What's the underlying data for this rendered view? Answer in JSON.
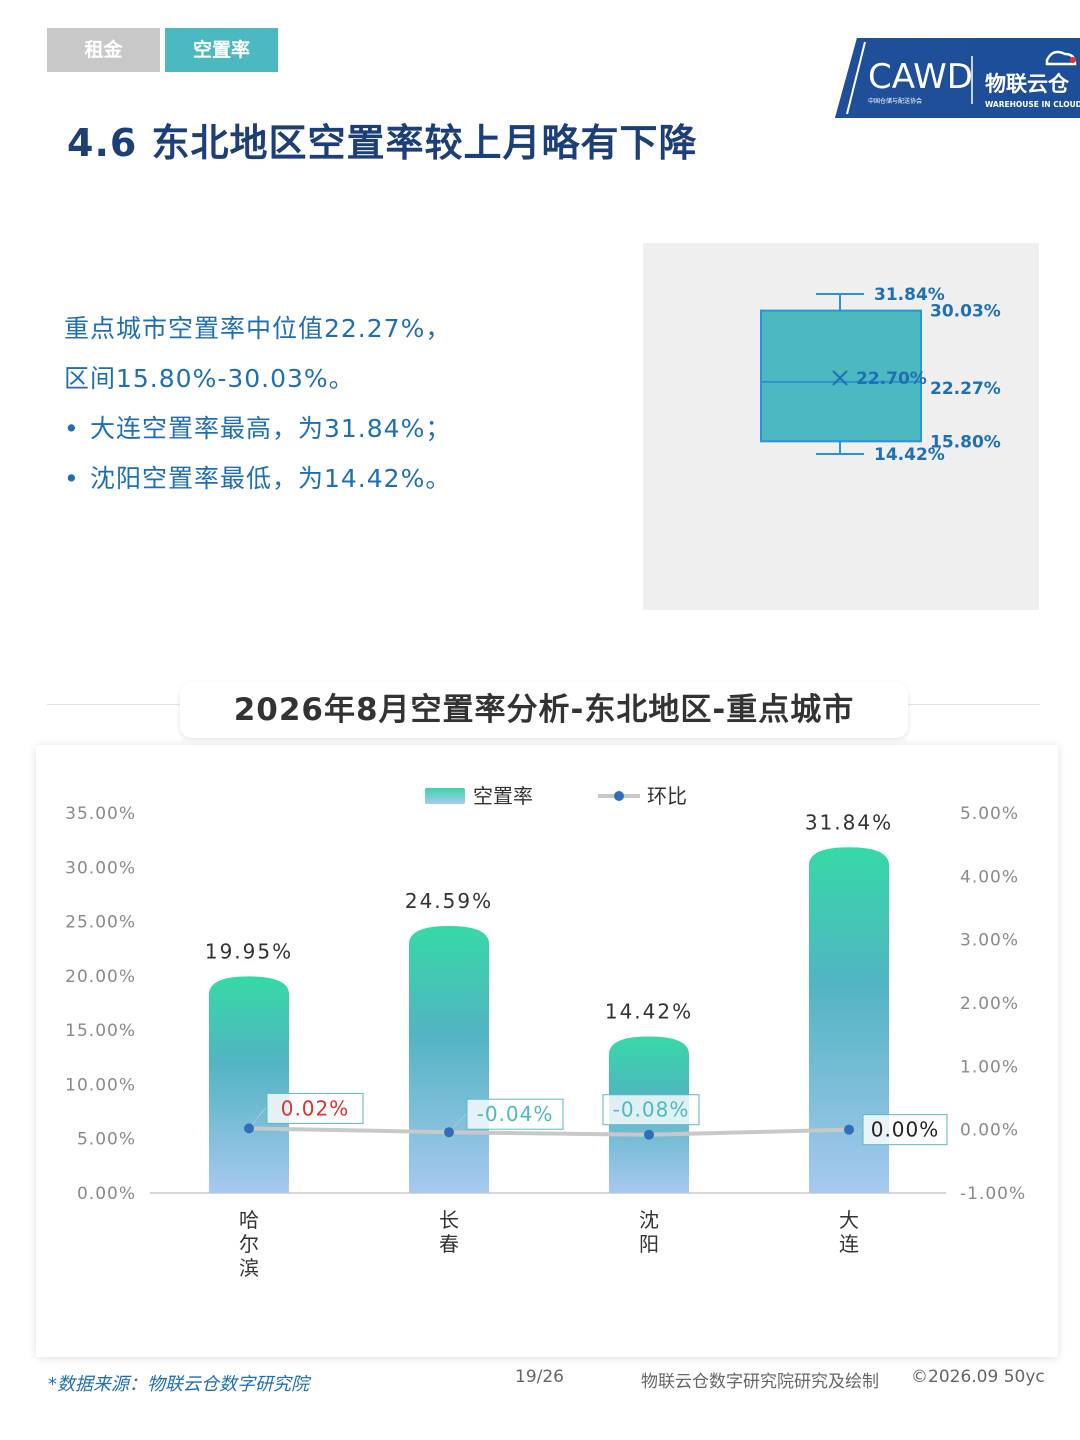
{
  "tabs": [
    {
      "label": "租金",
      "active": false
    },
    {
      "label": "空置率",
      "active": true
    }
  ],
  "logo": {
    "cawd": "CAWD",
    "cawd_sub": "中国仓储与配送协会",
    "brand": "物联云仓",
    "brand_sub": "WAREHOUSE IN CLOUD"
  },
  "page_title": "4.6 东北地区空置率较上月略有下降",
  "summary": {
    "line1": "重点城市空置率中位值22.27%，",
    "line2": "区间15.80%-30.03%。",
    "bullet1": "大连空置率最高，为31.84%；",
    "bullet2": "沈阳空置率最低，为14.42%。"
  },
  "boxplot": {
    "max": 31.84,
    "q3": 30.03,
    "median": 22.27,
    "mean": 22.7,
    "q1": 15.8,
    "min": 14.42,
    "labels": {
      "max": "31.84%",
      "q3": "30.03%",
      "mean": "22.70%",
      "median": "22.27%",
      "q1": "15.80%",
      "min": "14.42%"
    }
  },
  "chart_title": "2026年8月空置率分析-东北地区-重点城市",
  "chart_data": {
    "type": "bar",
    "categories": [
      "哈尔滨",
      "长春",
      "沈阳",
      "大连"
    ],
    "series": [
      {
        "name": "空置率",
        "type": "bar",
        "axis": "left",
        "values": [
          19.95,
          24.59,
          14.42,
          31.84
        ],
        "labels": [
          "19.95%",
          "24.59%",
          "14.42%",
          "31.84%"
        ]
      },
      {
        "name": "环比",
        "type": "line",
        "axis": "right",
        "values": [
          0.02,
          -0.04,
          -0.08,
          0.0
        ],
        "labels": [
          "0.02%",
          "-0.04%",
          "-0.08%",
          "0.00%"
        ]
      }
    ],
    "y_left": {
      "min": 0,
      "max": 35,
      "ticks": [
        "0.00%",
        "5.00%",
        "10.00%",
        "15.00%",
        "20.00%",
        "25.00%",
        "30.00%",
        "35.00%"
      ]
    },
    "y_right": {
      "min": -1,
      "max": 5,
      "ticks": [
        "-1.00%",
        "0.00%",
        "1.00%",
        "2.00%",
        "3.00%",
        "4.00%",
        "5.00%"
      ]
    },
    "legend": {
      "position": "top",
      "items": [
        "空置率",
        "环比"
      ]
    },
    "colors": {
      "bar_top": "#36d9a6",
      "bar_mid": "#52b4c2",
      "bar_bottom": "#a8c8f0",
      "line": "#c8c8c8",
      "dot": "#2f6fb8",
      "label_pos": "#e03030",
      "label_neg": "#4bb9bf",
      "label_zero": "#222222"
    }
  },
  "footer": {
    "source": "*数据来源：物联云仓数字研究院",
    "page": "19/26",
    "credit": "物联云仓数字研究院研究及绘制",
    "copyright": "©2026.09 50yc"
  }
}
